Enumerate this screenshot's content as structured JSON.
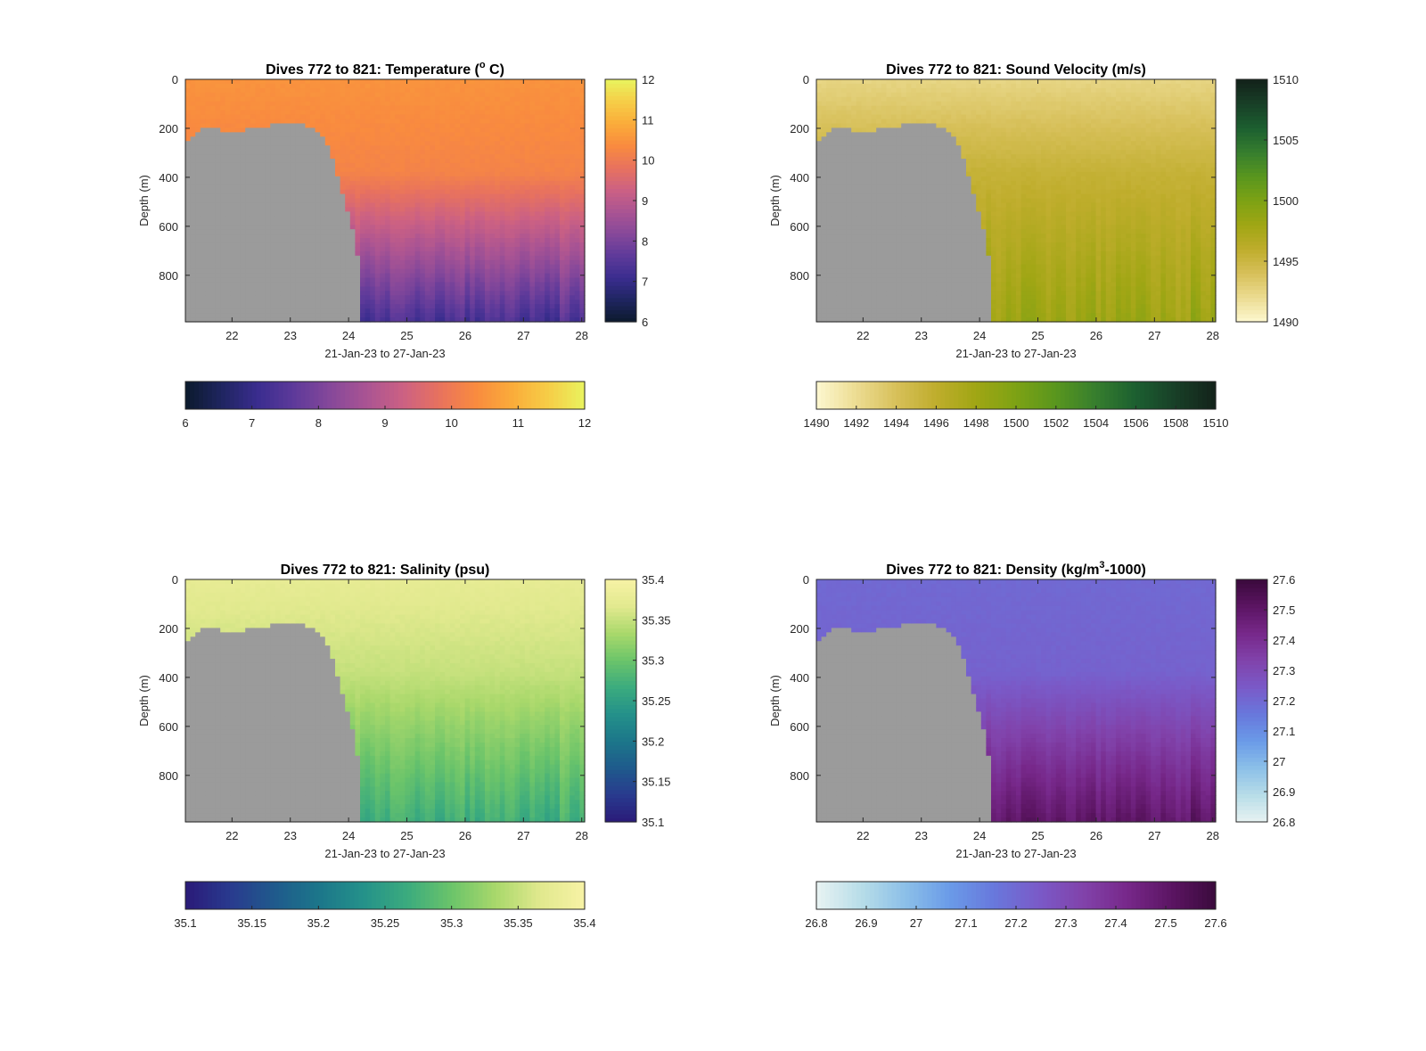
{
  "figure": {
    "background": "#ffffff",
    "masked_color": "#9b9b9b"
  },
  "chart_data": [
    {
      "id": "temperature",
      "type": "heatmap",
      "title": "Dives 772 to 821: Temperature (° C)",
      "title_parts": {
        "pre": "Dives 772 to 821: Temperature (",
        "sup": "o",
        "post": " C)"
      },
      "xlabel": "21-Jan-23 to 27-Jan-23",
      "ylabel": "Depth (m)",
      "xlim": [
        21.2,
        28.05
      ],
      "ylim": [
        0,
        990
      ],
      "y_reversed": true,
      "xticks": [
        22,
        23,
        24,
        25,
        26,
        27,
        28
      ],
      "yticks": [
        0,
        200,
        400,
        600,
        800
      ],
      "colormap": [
        "#0b1a2c",
        "#1f2560",
        "#3a2d8f",
        "#5e3a9a",
        "#86489a",
        "#aa5493",
        "#cc6183",
        "#e8725e",
        "#f98b3f",
        "#faac3a",
        "#f6cd47",
        "#e9f35e"
      ],
      "clim": [
        6,
        12
      ],
      "vertical_colorbar_ticks": [
        "6",
        "7",
        "8",
        "9",
        "10",
        "11",
        "12"
      ],
      "horizontal_colorbar_ticks": [
        "6",
        "7",
        "8",
        "9",
        "10",
        "11",
        "12"
      ],
      "profile": {
        "surface": 10.5,
        "thermocline_depth": 380,
        "thermocline_value": 10.2,
        "bottom_value": 7.3
      },
      "seafloor_boundary": [
        [
          21.2,
          260
        ],
        [
          21.4,
          220
        ],
        [
          21.6,
          190
        ],
        [
          22.0,
          220
        ],
        [
          22.4,
          200
        ],
        [
          22.8,
          180
        ],
        [
          23.2,
          185
        ],
        [
          23.5,
          220
        ],
        [
          23.7,
          300
        ],
        [
          23.85,
          420
        ],
        [
          23.95,
          520
        ],
        [
          24.05,
          600
        ],
        [
          24.15,
          700
        ],
        [
          24.2,
          990
        ]
      ]
    },
    {
      "id": "sound_velocity",
      "type": "heatmap",
      "title": "Dives 772 to 821: Sound Velocity (m/s)",
      "title_parts": {
        "pre": "Dives 772 to 821: Sound Velocity (m/s)",
        "sup": "",
        "post": ""
      },
      "xlabel": "21-Jan-23 to 27-Jan-23",
      "ylabel": "Depth (m)",
      "xlim": [
        21.2,
        28.05
      ],
      "ylim": [
        0,
        990
      ],
      "y_reversed": true,
      "xticks": [
        22,
        23,
        24,
        25,
        26,
        27,
        28
      ],
      "yticks": [
        0,
        200,
        400,
        600,
        800
      ],
      "colormap": [
        "#fdf8d0",
        "#ecdc92",
        "#d7c05a",
        "#bfad2c",
        "#a0a614",
        "#7da214",
        "#59961e",
        "#367e2e",
        "#1c5f30",
        "#183f27",
        "#13221a"
      ],
      "clim": [
        1490,
        1510
      ],
      "vertical_colorbar_ticks": [
        "1490",
        "1495",
        "1500",
        "1505",
        "1510"
      ],
      "horizontal_colorbar_ticks": [
        "1490",
        "1492",
        "1494",
        "1496",
        "1498",
        "1500",
        "1502",
        "1504",
        "1506",
        "1508",
        "1510"
      ],
      "profile": {
        "surface": 1492.5,
        "thermocline_depth": 380,
        "thermocline_value": 1495.5,
        "bottom_value": 1498.2
      },
      "seafloor_boundary": [
        [
          21.2,
          260
        ],
        [
          21.4,
          220
        ],
        [
          21.6,
          190
        ],
        [
          22.0,
          220
        ],
        [
          22.4,
          200
        ],
        [
          22.8,
          180
        ],
        [
          23.2,
          185
        ],
        [
          23.5,
          220
        ],
        [
          23.7,
          300
        ],
        [
          23.85,
          420
        ],
        [
          23.95,
          520
        ],
        [
          24.05,
          600
        ],
        [
          24.15,
          700
        ],
        [
          24.2,
          990
        ]
      ]
    },
    {
      "id": "salinity",
      "type": "heatmap",
      "title": "Dives 772 to 821: Salinity (psu)",
      "title_parts": {
        "pre": "Dives 772 to 821: Salinity (psu)",
        "sup": "",
        "post": ""
      },
      "xlabel": "21-Jan-23 to 27-Jan-23",
      "ylabel": "Depth (m)",
      "xlim": [
        21.2,
        28.05
      ],
      "ylim": [
        0,
        990
      ],
      "y_reversed": true,
      "xticks": [
        22,
        23,
        24,
        25,
        26,
        27,
        28
      ],
      "yticks": [
        0,
        200,
        400,
        600,
        800
      ],
      "colormap": [
        "#2a1a78",
        "#293a8e",
        "#1f5a8c",
        "#1c768a",
        "#24918a",
        "#3bab7e",
        "#6bc46a",
        "#a9d86b",
        "#e1e98e",
        "#f7f2a5"
      ],
      "clim": [
        35.1,
        35.4
      ],
      "vertical_colorbar_ticks": [
        "35.1",
        "35.15",
        "35.2",
        "35.25",
        "35.3",
        "35.35",
        "35.4"
      ],
      "horizontal_colorbar_ticks": [
        "35.1",
        "35.15",
        "35.2",
        "35.25",
        "35.3",
        "35.35",
        "35.4"
      ],
      "profile": {
        "surface": 35.375,
        "thermocline_depth": 380,
        "thermocline_value": 35.35,
        "bottom_value": 35.27
      },
      "seafloor_boundary": [
        [
          21.2,
          260
        ],
        [
          21.4,
          220
        ],
        [
          21.6,
          190
        ],
        [
          22.0,
          220
        ],
        [
          22.4,
          200
        ],
        [
          22.8,
          180
        ],
        [
          23.2,
          185
        ],
        [
          23.5,
          220
        ],
        [
          23.7,
          300
        ],
        [
          23.85,
          420
        ],
        [
          23.95,
          520
        ],
        [
          24.05,
          600
        ],
        [
          24.15,
          700
        ],
        [
          24.2,
          990
        ]
      ]
    },
    {
      "id": "density",
      "type": "heatmap",
      "title": "Dives 772 to 821: Density (kg/m³-1000)",
      "title_parts": {
        "pre": "Dives 772 to 821: Density (kg/m",
        "sup": "3",
        "post": "-1000)"
      },
      "xlabel": "21-Jan-23 to 27-Jan-23",
      "ylabel": "Depth (m)",
      "xlim": [
        21.2,
        28.05
      ],
      "ylim": [
        0,
        990
      ],
      "y_reversed": true,
      "xticks": [
        22,
        23,
        24,
        25,
        26,
        27,
        28
      ],
      "yticks": [
        0,
        200,
        400,
        600,
        800
      ],
      "colormap": [
        "#e8f3f2",
        "#b8dde8",
        "#8cc0e8",
        "#6a9be8",
        "#6878dc",
        "#7a5ac8",
        "#8143ab",
        "#77288a",
        "#5c1563",
        "#3a0a3c"
      ],
      "clim": [
        26.8,
        27.6
      ],
      "vertical_colorbar_ticks": [
        "26.8",
        "26.9",
        "27",
        "27.1",
        "27.2",
        "27.3",
        "27.4",
        "27.5",
        "27.6"
      ],
      "horizontal_colorbar_ticks": [
        "26.8",
        "26.9",
        "27",
        "27.1",
        "27.2",
        "27.3",
        "27.4",
        "27.5",
        "27.6"
      ],
      "profile": {
        "surface": 27.2,
        "thermocline_depth": 380,
        "thermocline_value": 27.22,
        "bottom_value": 27.5
      },
      "seafloor_boundary": [
        [
          21.2,
          260
        ],
        [
          21.4,
          220
        ],
        [
          21.6,
          190
        ],
        [
          22.0,
          220
        ],
        [
          22.4,
          200
        ],
        [
          22.8,
          180
        ],
        [
          23.2,
          185
        ],
        [
          23.5,
          220
        ],
        [
          23.7,
          300
        ],
        [
          23.85,
          420
        ],
        [
          23.95,
          520
        ],
        [
          24.05,
          600
        ],
        [
          24.15,
          700
        ],
        [
          24.2,
          990
        ]
      ]
    }
  ]
}
